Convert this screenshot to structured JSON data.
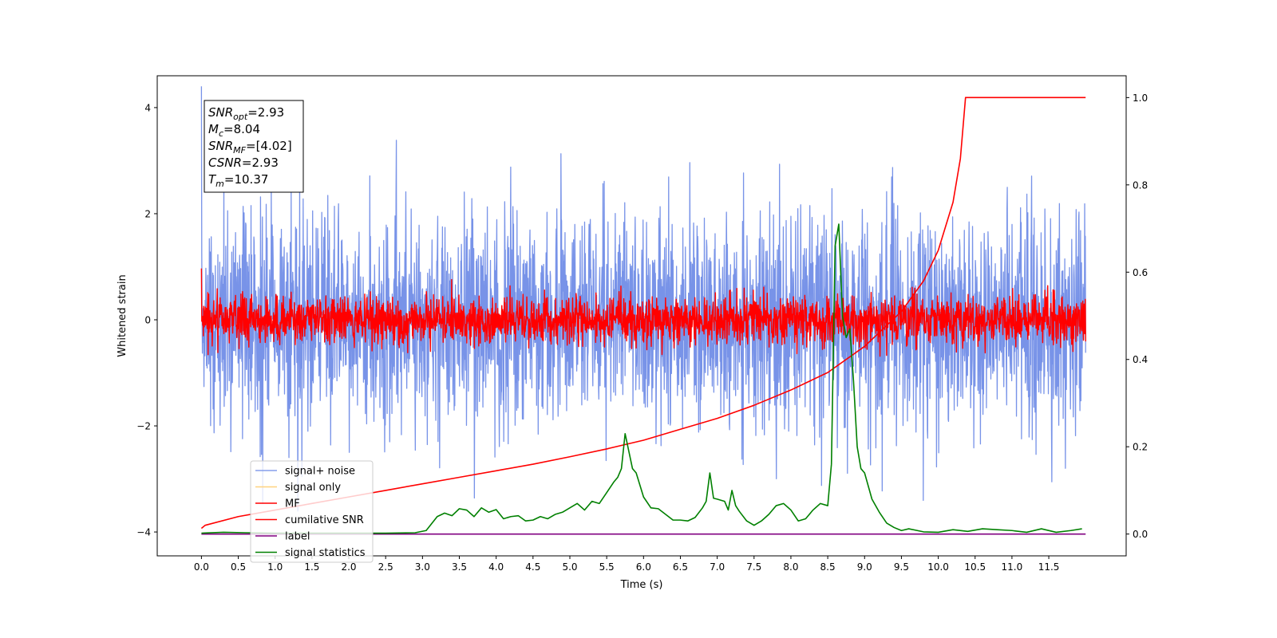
{
  "chart_data": {
    "type": "line",
    "title": "",
    "xlabel": "Time (s)",
    "ylabel": "Whitened strain",
    "ylabel_right": "",
    "xlim": [
      -0.6,
      12.55
    ],
    "ylim": [
      -4.45,
      4.6
    ],
    "ylim_right": [
      -0.05,
      1.05
    ],
    "x_ticks": [
      "0.0",
      "0.5",
      "1.0",
      "1.5",
      "2.0",
      "2.5",
      "3.0",
      "3.5",
      "4.0",
      "4.5",
      "5.0",
      "5.5",
      "6.0",
      "6.5",
      "7.0",
      "7.5",
      "8.0",
      "8.5",
      "9.0",
      "9.5",
      "10.0",
      "10.5",
      "11.0",
      "11.5"
    ],
    "x_tick_values": [
      0.0,
      0.5,
      1.0,
      1.5,
      2.0,
      2.5,
      3.0,
      3.5,
      4.0,
      4.5,
      5.0,
      5.5,
      6.0,
      6.5,
      7.0,
      7.5,
      8.0,
      8.5,
      9.0,
      9.5,
      10.0,
      10.5,
      11.0,
      11.5
    ],
    "y_ticks_left": [
      "4",
      "2",
      "0",
      "−2",
      "−4"
    ],
    "y_tick_values_left": [
      4,
      2,
      0,
      -2,
      -4
    ],
    "y_ticks_right": [
      "1.0",
      "0.8",
      "0.6",
      "0.4",
      "0.2",
      "0.0"
    ],
    "y_tick_values_right": [
      1.0,
      0.8,
      0.6,
      0.4,
      0.2,
      0.0
    ],
    "grid": false,
    "legend_position": "lower-left",
    "annotation": [
      {
        "base": "SNR",
        "sub": "opt",
        "value": "=2.93"
      },
      {
        "base": "M",
        "sub": "c",
        "value": "=8.04"
      },
      {
        "base": "SNR",
        "sub": "MF",
        "value": "=[4.02]"
      },
      {
        "base": "CSNR",
        "sub": "",
        "value": "=2.93"
      },
      {
        "base": "T",
        "sub": "m",
        "value": "=10.37"
      }
    ],
    "series": [
      {
        "name": "signal+ noise",
        "axis": "left",
        "color": "#7893e8",
        "kind": "noise",
        "sigma": 1.0,
        "x_range": [
          0.0,
          12.0
        ]
      },
      {
        "name": "signal only",
        "axis": "left",
        "color": "#ffd27f",
        "kind": "hidden"
      },
      {
        "name": "MF",
        "axis": "left",
        "color": "#ff0000",
        "kind": "noise",
        "sigma": 0.22,
        "x_range": [
          0.0,
          12.0
        ]
      },
      {
        "name": "cumilative SNR",
        "axis": "right",
        "color": "#ff0000",
        "kind": "line",
        "x": [
          0.0,
          0.05,
          0.5,
          1.0,
          1.5,
          2.0,
          2.5,
          3.0,
          3.5,
          4.0,
          4.5,
          5.0,
          5.5,
          6.0,
          6.5,
          7.0,
          7.5,
          8.0,
          8.5,
          9.0,
          9.5,
          9.8,
          10.0,
          10.2,
          10.3,
          10.37,
          12.0
        ],
        "y": [
          0.013,
          0.02,
          0.04,
          0.055,
          0.07,
          0.085,
          0.1,
          0.115,
          0.13,
          0.145,
          0.16,
          0.177,
          0.195,
          0.215,
          0.24,
          0.265,
          0.295,
          0.33,
          0.37,
          0.43,
          0.51,
          0.58,
          0.65,
          0.76,
          0.86,
          1.0,
          1.0
        ]
      },
      {
        "name": "label",
        "axis": "right",
        "color": "#800080",
        "kind": "line",
        "x": [
          0.0,
          12.0
        ],
        "y": [
          0.0,
          0.0
        ]
      },
      {
        "name": "signal statistics",
        "axis": "right",
        "color": "#008000",
        "kind": "line",
        "x": [
          0.0,
          0.3,
          0.6,
          1.0,
          1.5,
          2.0,
          2.5,
          2.9,
          3.05,
          3.2,
          3.3,
          3.4,
          3.5,
          3.6,
          3.7,
          3.8,
          3.9,
          4.0,
          4.1,
          4.2,
          4.3,
          4.4,
          4.5,
          4.6,
          4.7,
          4.8,
          4.9,
          5.0,
          5.1,
          5.2,
          5.3,
          5.4,
          5.5,
          5.6,
          5.65,
          5.7,
          5.75,
          5.8,
          5.85,
          5.9,
          6.0,
          6.1,
          6.2,
          6.3,
          6.4,
          6.5,
          6.6,
          6.7,
          6.8,
          6.85,
          6.9,
          6.95,
          7.0,
          7.1,
          7.15,
          7.2,
          7.25,
          7.3,
          7.4,
          7.5,
          7.6,
          7.7,
          7.8,
          7.9,
          8.0,
          8.1,
          8.2,
          8.3,
          8.4,
          8.5,
          8.55,
          8.6,
          8.65,
          8.7,
          8.75,
          8.8,
          8.85,
          8.9,
          8.95,
          9.0,
          9.1,
          9.2,
          9.3,
          9.4,
          9.5,
          9.6,
          9.8,
          10.0,
          10.2,
          10.4,
          10.6,
          10.8,
          11.0,
          11.2,
          11.4,
          11.6,
          11.8,
          11.95
        ],
        "y": [
          0.002,
          0.004,
          0.003,
          0.002,
          0.002,
          0.002,
          0.002,
          0.003,
          0.008,
          0.04,
          0.048,
          0.042,
          0.058,
          0.055,
          0.04,
          0.06,
          0.05,
          0.056,
          0.035,
          0.04,
          0.042,
          0.03,
          0.032,
          0.04,
          0.035,
          0.045,
          0.05,
          0.06,
          0.07,
          0.055,
          0.075,
          0.07,
          0.095,
          0.12,
          0.13,
          0.15,
          0.23,
          0.19,
          0.15,
          0.14,
          0.085,
          0.06,
          0.058,
          0.045,
          0.032,
          0.032,
          0.03,
          0.038,
          0.06,
          0.075,
          0.14,
          0.082,
          0.08,
          0.075,
          0.055,
          0.1,
          0.065,
          0.052,
          0.03,
          0.02,
          0.03,
          0.045,
          0.065,
          0.07,
          0.055,
          0.03,
          0.035,
          0.055,
          0.07,
          0.065,
          0.16,
          0.66,
          0.71,
          0.5,
          0.45,
          0.47,
          0.35,
          0.2,
          0.15,
          0.14,
          0.08,
          0.05,
          0.025,
          0.015,
          0.008,
          0.012,
          0.005,
          0.004,
          0.01,
          0.006,
          0.012,
          0.01,
          0.008,
          0.004,
          0.012,
          0.004,
          0.008,
          0.012
        ]
      }
    ]
  }
}
